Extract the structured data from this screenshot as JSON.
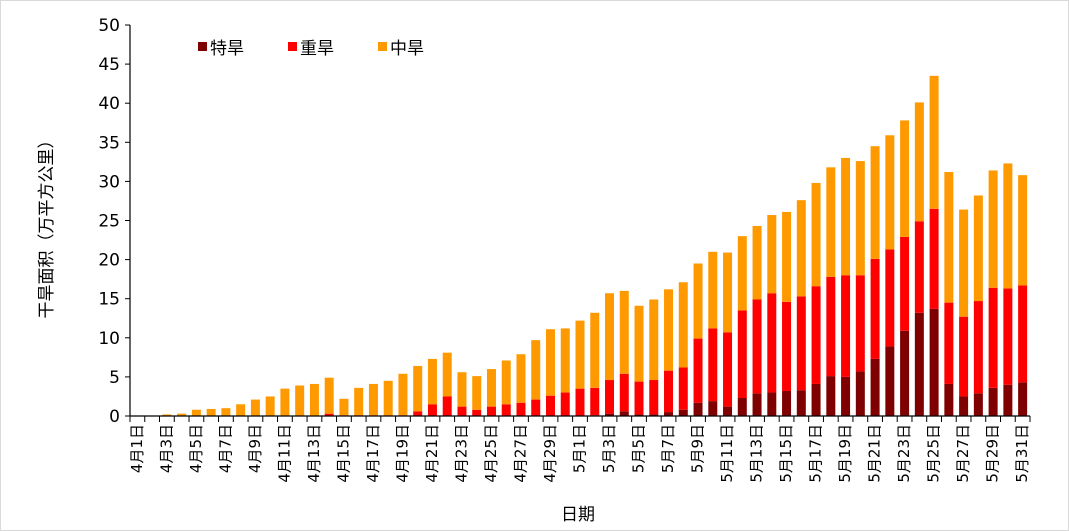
{
  "chart_data": {
    "type": "bar",
    "stacked": true,
    "xlabel": "日期",
    "ylabel": "干旱面积（万平方公里）",
    "ylim": [
      0,
      50
    ],
    "yticks": [
      0,
      5,
      10,
      15,
      20,
      25,
      30,
      35,
      40,
      45,
      50
    ],
    "grid": false,
    "legend_position": "top-left",
    "categories": [
      "4月1日",
      "4月2日",
      "4月3日",
      "4月4日",
      "4月5日",
      "4月6日",
      "4月7日",
      "4月8日",
      "4月9日",
      "4月10日",
      "4月11日",
      "4月12日",
      "4月13日",
      "4月14日",
      "4月15日",
      "4月16日",
      "4月17日",
      "4月18日",
      "4月19日",
      "4月20日",
      "4月21日",
      "4月22日",
      "4月23日",
      "4月24日",
      "4月25日",
      "4月26日",
      "4月27日",
      "4月28日",
      "4月29日",
      "4月30日",
      "5月1日",
      "5月2日",
      "5月3日",
      "5月4日",
      "5月5日",
      "5月6日",
      "5月7日",
      "5月8日",
      "5月9日",
      "5月10日",
      "5月11日",
      "5月12日",
      "5月13日",
      "5月14日",
      "5月15日",
      "5月16日",
      "5月17日",
      "5月18日",
      "5月19日",
      "5月20日",
      "5月21日",
      "5月22日",
      "5月23日",
      "5月24日",
      "5月25日",
      "5月26日",
      "5月27日",
      "5月28日",
      "5月29日",
      "5月30日",
      "5月31日"
    ],
    "series": [
      {
        "name": "特旱",
        "color": "#7f0000",
        "values": [
          0,
          0,
          0,
          0,
          0,
          0,
          0,
          0,
          0,
          0,
          0,
          0,
          0,
          0,
          0,
          0,
          0,
          0,
          0,
          0,
          0,
          0,
          0,
          0,
          0,
          0,
          0,
          0,
          0,
          0,
          0,
          0.1,
          0.3,
          0.6,
          0.2,
          0.2,
          0.5,
          0.8,
          1.7,
          1.9,
          1.2,
          2.3,
          2.9,
          3.0,
          3.2,
          3.3,
          4.1,
          5.1,
          5.0,
          5.7,
          7.3,
          8.9,
          10.9,
          13.2,
          13.7,
          4.1,
          2.5,
          2.9,
          3.6,
          4.0,
          4.3
        ]
      },
      {
        "name": "重旱",
        "color": "#ff0000",
        "values": [
          0,
          0,
          0,
          0,
          0,
          0,
          0,
          0,
          0,
          0,
          0,
          0,
          0,
          0.3,
          0.1,
          0.1,
          0.1,
          0.1,
          0.1,
          0.6,
          1.5,
          2.5,
          1.2,
          0.8,
          1.2,
          1.5,
          1.7,
          2.1,
          2.6,
          3.0,
          3.5,
          3.5,
          4.3,
          4.8,
          4.2,
          4.4,
          5.3,
          5.4,
          8.2,
          9.3,
          9.5,
          11.2,
          12.0,
          12.7,
          11.4,
          12.0,
          12.5,
          12.7,
          13.0,
          12.3,
          12.8,
          12.4,
          12.0,
          11.7,
          12.8,
          10.4,
          10.2,
          11.8,
          12.8,
          12.3,
          12.4
        ]
      },
      {
        "name": "中旱",
        "color": "#ff9900",
        "values": [
          0,
          0,
          0.2,
          0.3,
          0.8,
          0.9,
          1.0,
          1.5,
          2.1,
          2.5,
          3.5,
          3.9,
          4.1,
          4.6,
          2.1,
          3.5,
          4.0,
          4.4,
          5.3,
          5.8,
          5.8,
          5.6,
          4.4,
          4.3,
          4.8,
          5.6,
          6.2,
          7.6,
          8.5,
          8.2,
          8.7,
          9.6,
          11.1,
          10.6,
          9.7,
          10.3,
          10.4,
          10.9,
          9.6,
          9.8,
          10.2,
          9.5,
          9.4,
          10.0,
          11.5,
          12.3,
          13.2,
          14.0,
          15.0,
          14.6,
          14.4,
          14.6,
          14.9,
          15.2,
          17.0,
          16.7,
          13.7,
          13.5,
          15.0,
          16.0,
          14.1
        ]
      }
    ]
  }
}
